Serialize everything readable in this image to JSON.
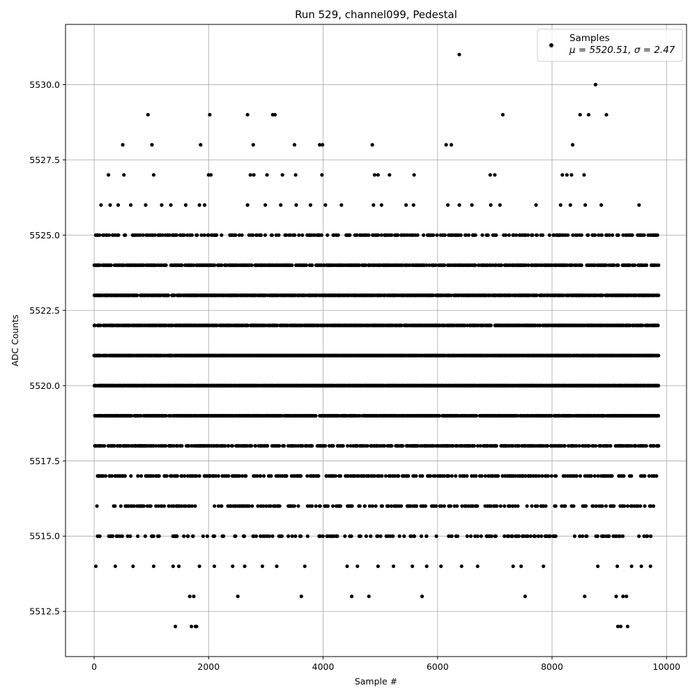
{
  "chart_data": {
    "type": "scatter",
    "title": "Run 529, channel099, Pedestal",
    "xlabel": "Sample #",
    "ylabel": "ADC Counts",
    "xlim": [
      -500,
      10350
    ],
    "ylim": [
      5511.0,
      5532.0
    ],
    "x_ticks": [
      0,
      2000,
      4000,
      6000,
      8000,
      10000
    ],
    "x_tick_labels": [
      "0",
      "2000",
      "4000",
      "6000",
      "8000",
      "10000"
    ],
    "y_ticks": [
      5512.5,
      5515.0,
      5517.5,
      5520.0,
      5522.5,
      5525.0,
      5527.5,
      5530.0
    ],
    "y_tick_labels": [
      "5512.5",
      "5515.0",
      "5517.5",
      "5520.0",
      "5522.5",
      "5525.0",
      "5527.5",
      "5530.0"
    ],
    "grid": true,
    "legend_position": "top-right",
    "legend": {
      "label": "Samples",
      "stats": "μ = 5520.51, σ = 2.47"
    },
    "marker_color": "#000000",
    "grid_color": "#b0b0b0",
    "series": [
      {
        "name": "Samples",
        "x_range": [
          0,
          9860
        ],
        "dense_levels": [
          {
            "y": 5518,
            "ranges": [
              [
                0,
                9860
              ]
            ]
          },
          {
            "y": 5519,
            "ranges": [
              [
                0,
                9860
              ]
            ]
          },
          {
            "y": 5520,
            "ranges": [
              [
                0,
                9860
              ]
            ]
          },
          {
            "y": 5521,
            "ranges": [
              [
                0,
                9860
              ]
            ]
          },
          {
            "y": 5522,
            "ranges": [
              [
                0,
                9860
              ]
            ]
          },
          {
            "y": 5523,
            "ranges": [
              [
                0,
                9860
              ]
            ]
          },
          {
            "y": 5524,
            "ranges": [
              [
                0,
                9860
              ]
            ]
          },
          {
            "y": 5525,
            "ranges": [
              [
                0,
                9860
              ]
            ]
          },
          {
            "y": 5517,
            "ranges": [
              [
                0,
                9860
              ]
            ]
          },
          {
            "y": 5516,
            "ranges": [
              [
                0,
                9860
              ]
            ]
          },
          {
            "y": 5515,
            "ranges": [
              [
                0,
                9860
              ]
            ]
          }
        ],
        "sparse_points": [
          [
            6380,
            5531
          ],
          [
            8760,
            5530
          ],
          [
            940,
            5529
          ],
          [
            2020,
            5529
          ],
          [
            2680,
            5529
          ],
          [
            3120,
            5529
          ],
          [
            3160,
            5529
          ],
          [
            7140,
            5529
          ],
          [
            8490,
            5529
          ],
          [
            8640,
            5529
          ],
          [
            8950,
            5529
          ],
          [
            500,
            5528
          ],
          [
            1010,
            5528
          ],
          [
            1860,
            5528
          ],
          [
            2780,
            5528
          ],
          [
            3500,
            5528
          ],
          [
            3940,
            5528
          ],
          [
            3990,
            5528
          ],
          [
            4860,
            5528
          ],
          [
            6150,
            5528
          ],
          [
            6240,
            5528
          ],
          [
            8360,
            5528
          ],
          [
            250,
            5527
          ],
          [
            520,
            5527
          ],
          [
            1040,
            5527
          ],
          [
            2000,
            5527
          ],
          [
            2040,
            5527
          ],
          [
            2730,
            5527
          ],
          [
            2790,
            5527
          ],
          [
            3020,
            5527
          ],
          [
            3290,
            5527
          ],
          [
            3520,
            5527
          ],
          [
            3980,
            5527
          ],
          [
            4900,
            5527
          ],
          [
            4960,
            5527
          ],
          [
            5160,
            5527
          ],
          [
            5590,
            5527
          ],
          [
            6920,
            5527
          ],
          [
            7000,
            5527
          ],
          [
            8180,
            5527
          ],
          [
            8260,
            5527
          ],
          [
            8340,
            5527
          ],
          [
            8560,
            5527
          ],
          [
            120,
            5526
          ],
          [
            280,
            5526
          ],
          [
            420,
            5526
          ],
          [
            640,
            5526
          ],
          [
            900,
            5526
          ],
          [
            1180,
            5526
          ],
          [
            1340,
            5526
          ],
          [
            1600,
            5526
          ],
          [
            1840,
            5526
          ],
          [
            1930,
            5526
          ],
          [
            2680,
            5526
          ],
          [
            2990,
            5526
          ],
          [
            3260,
            5526
          ],
          [
            3530,
            5526
          ],
          [
            3780,
            5526
          ],
          [
            4040,
            5526
          ],
          [
            4320,
            5526
          ],
          [
            4880,
            5526
          ],
          [
            5020,
            5526
          ],
          [
            5450,
            5526
          ],
          [
            5580,
            5526
          ],
          [
            6180,
            5526
          ],
          [
            6380,
            5526
          ],
          [
            6600,
            5526
          ],
          [
            6930,
            5526
          ],
          [
            7090,
            5526
          ],
          [
            7720,
            5526
          ],
          [
            8150,
            5526
          ],
          [
            8320,
            5526
          ],
          [
            8580,
            5526
          ],
          [
            8860,
            5526
          ],
          [
            9520,
            5526
          ],
          [
            30,
            5514
          ],
          [
            370,
            5514
          ],
          [
            680,
            5514
          ],
          [
            1040,
            5514
          ],
          [
            1380,
            5514
          ],
          [
            1480,
            5514
          ],
          [
            1840,
            5514
          ],
          [
            2100,
            5514
          ],
          [
            2420,
            5514
          ],
          [
            2630,
            5514
          ],
          [
            2940,
            5514
          ],
          [
            3190,
            5514
          ],
          [
            3680,
            5514
          ],
          [
            4420,
            5514
          ],
          [
            4600,
            5514
          ],
          [
            4960,
            5514
          ],
          [
            5230,
            5514
          ],
          [
            5560,
            5514
          ],
          [
            5810,
            5514
          ],
          [
            6060,
            5514
          ],
          [
            6420,
            5514
          ],
          [
            6700,
            5514
          ],
          [
            7320,
            5514
          ],
          [
            7460,
            5514
          ],
          [
            7850,
            5514
          ],
          [
            8800,
            5514
          ],
          [
            9140,
            5514
          ],
          [
            9390,
            5514
          ],
          [
            9560,
            5514
          ],
          [
            9720,
            5514
          ],
          [
            1670,
            5513
          ],
          [
            1740,
            5513
          ],
          [
            2510,
            5513
          ],
          [
            3620,
            5513
          ],
          [
            4500,
            5513
          ],
          [
            4800,
            5513
          ],
          [
            5730,
            5513
          ],
          [
            7530,
            5513
          ],
          [
            8570,
            5513
          ],
          [
            9120,
            5513
          ],
          [
            9240,
            5513
          ],
          [
            9300,
            5513
          ],
          [
            1420,
            5512
          ],
          [
            1700,
            5512
          ],
          [
            1770,
            5512
          ],
          [
            1790,
            5512
          ],
          [
            9150,
            5512
          ],
          [
            9200,
            5512
          ],
          [
            9320,
            5512
          ]
        ]
      }
    ]
  }
}
